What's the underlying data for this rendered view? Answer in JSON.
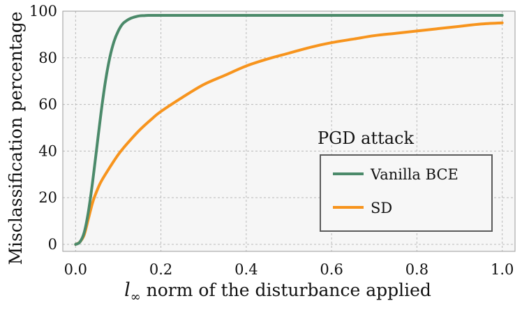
{
  "chart_data": {
    "type": "line",
    "title": "",
    "xlabel_var": "l",
    "xlabel_sub": "∞",
    "xlabel_rest": " norm of the disturbance applied",
    "ylabel": "Misclassification percentage",
    "xlim": [
      -0.03,
      1.03
    ],
    "ylim": [
      -3,
      100
    ],
    "xticks": [
      0.0,
      0.2,
      0.4,
      0.6,
      0.8,
      1.0
    ],
    "xtick_labels": [
      "0.0",
      "0.2",
      "0.4",
      "0.6",
      "0.8",
      "1.0"
    ],
    "yticks": [
      0,
      20,
      40,
      60,
      80,
      100
    ],
    "ytick_labels": [
      "0",
      "20",
      "40",
      "60",
      "80",
      "100"
    ],
    "grid": true,
    "legend": {
      "title": "PGD attack",
      "location": "center-right"
    },
    "series": [
      {
        "name": "Vanilla BCE",
        "color": "#4b8a6a",
        "x": [
          0.0,
          0.01,
          0.02,
          0.03,
          0.04,
          0.05,
          0.06,
          0.07,
          0.08,
          0.09,
          0.1,
          0.11,
          0.12,
          0.13,
          0.14,
          0.15,
          0.16,
          0.17,
          0.2,
          0.3,
          0.4,
          0.5,
          0.6,
          0.7,
          0.8,
          0.9,
          1.0
        ],
        "y": [
          0,
          1,
          5,
          14,
          27,
          42,
          57,
          70,
          80,
          87,
          91.5,
          94.5,
          96,
          97,
          97.6,
          98,
          98.1,
          98.2,
          98.2,
          98.2,
          98.2,
          98.2,
          98.2,
          98.2,
          98.2,
          98.2,
          98.2
        ]
      },
      {
        "name": "SD",
        "color": "#f7941d",
        "x": [
          0.0,
          0.01,
          0.02,
          0.03,
          0.04,
          0.05,
          0.06,
          0.08,
          0.1,
          0.12,
          0.15,
          0.18,
          0.2,
          0.25,
          0.3,
          0.35,
          0.4,
          0.45,
          0.5,
          0.55,
          0.6,
          0.65,
          0.7,
          0.75,
          0.8,
          0.85,
          0.9,
          0.95,
          1.0
        ],
        "y": [
          0,
          1,
          4,
          11,
          18,
          23,
          27,
          33,
          38.5,
          43,
          49,
          54,
          57,
          63,
          68.5,
          72.5,
          76.5,
          79.5,
          82,
          84.5,
          86.5,
          88,
          89.5,
          90.5,
          91.5,
          92.5,
          93.5,
          94.5,
          95
        ]
      }
    ]
  }
}
